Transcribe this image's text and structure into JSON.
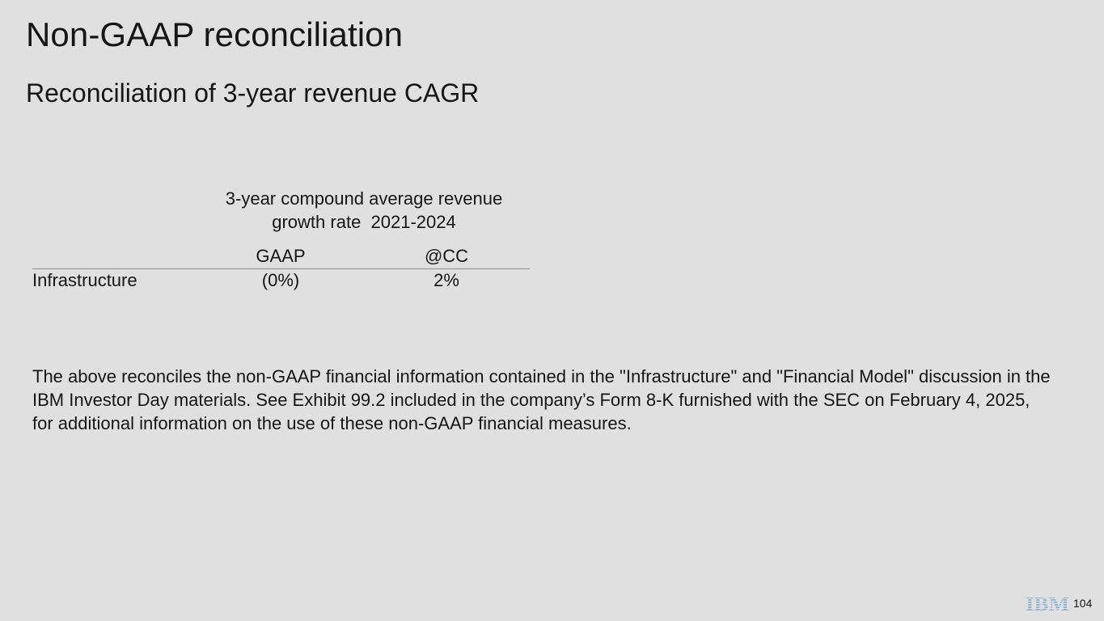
{
  "slide": {
    "title": "Non-GAAP reconciliation",
    "subtitle": "Reconciliation of 3-year revenue CAGR",
    "page_number": "104"
  },
  "table": {
    "header_line1": "3-year compound average revenue",
    "header_line2": "growth rate  2021-2024",
    "columns": [
      "GAAP",
      "@CC"
    ],
    "rows": [
      {
        "label": "Infrastructure",
        "values": [
          "(0%)",
          "2%"
        ]
      }
    ]
  },
  "note": "The above reconciles the non-GAAP financial information contained in the \"Infrastructure\" and \"Financial Model\" discussion in the IBM Investor Day materials. See Exhibit 99.2 included in the company’s Form 8-K furnished with the SEC on February 4, 2025, for additional information on the use of these non-GAAP financial measures.",
  "logo": {
    "text": "IBM",
    "color": "#0f62fe",
    "icon": "ibm-logo"
  }
}
